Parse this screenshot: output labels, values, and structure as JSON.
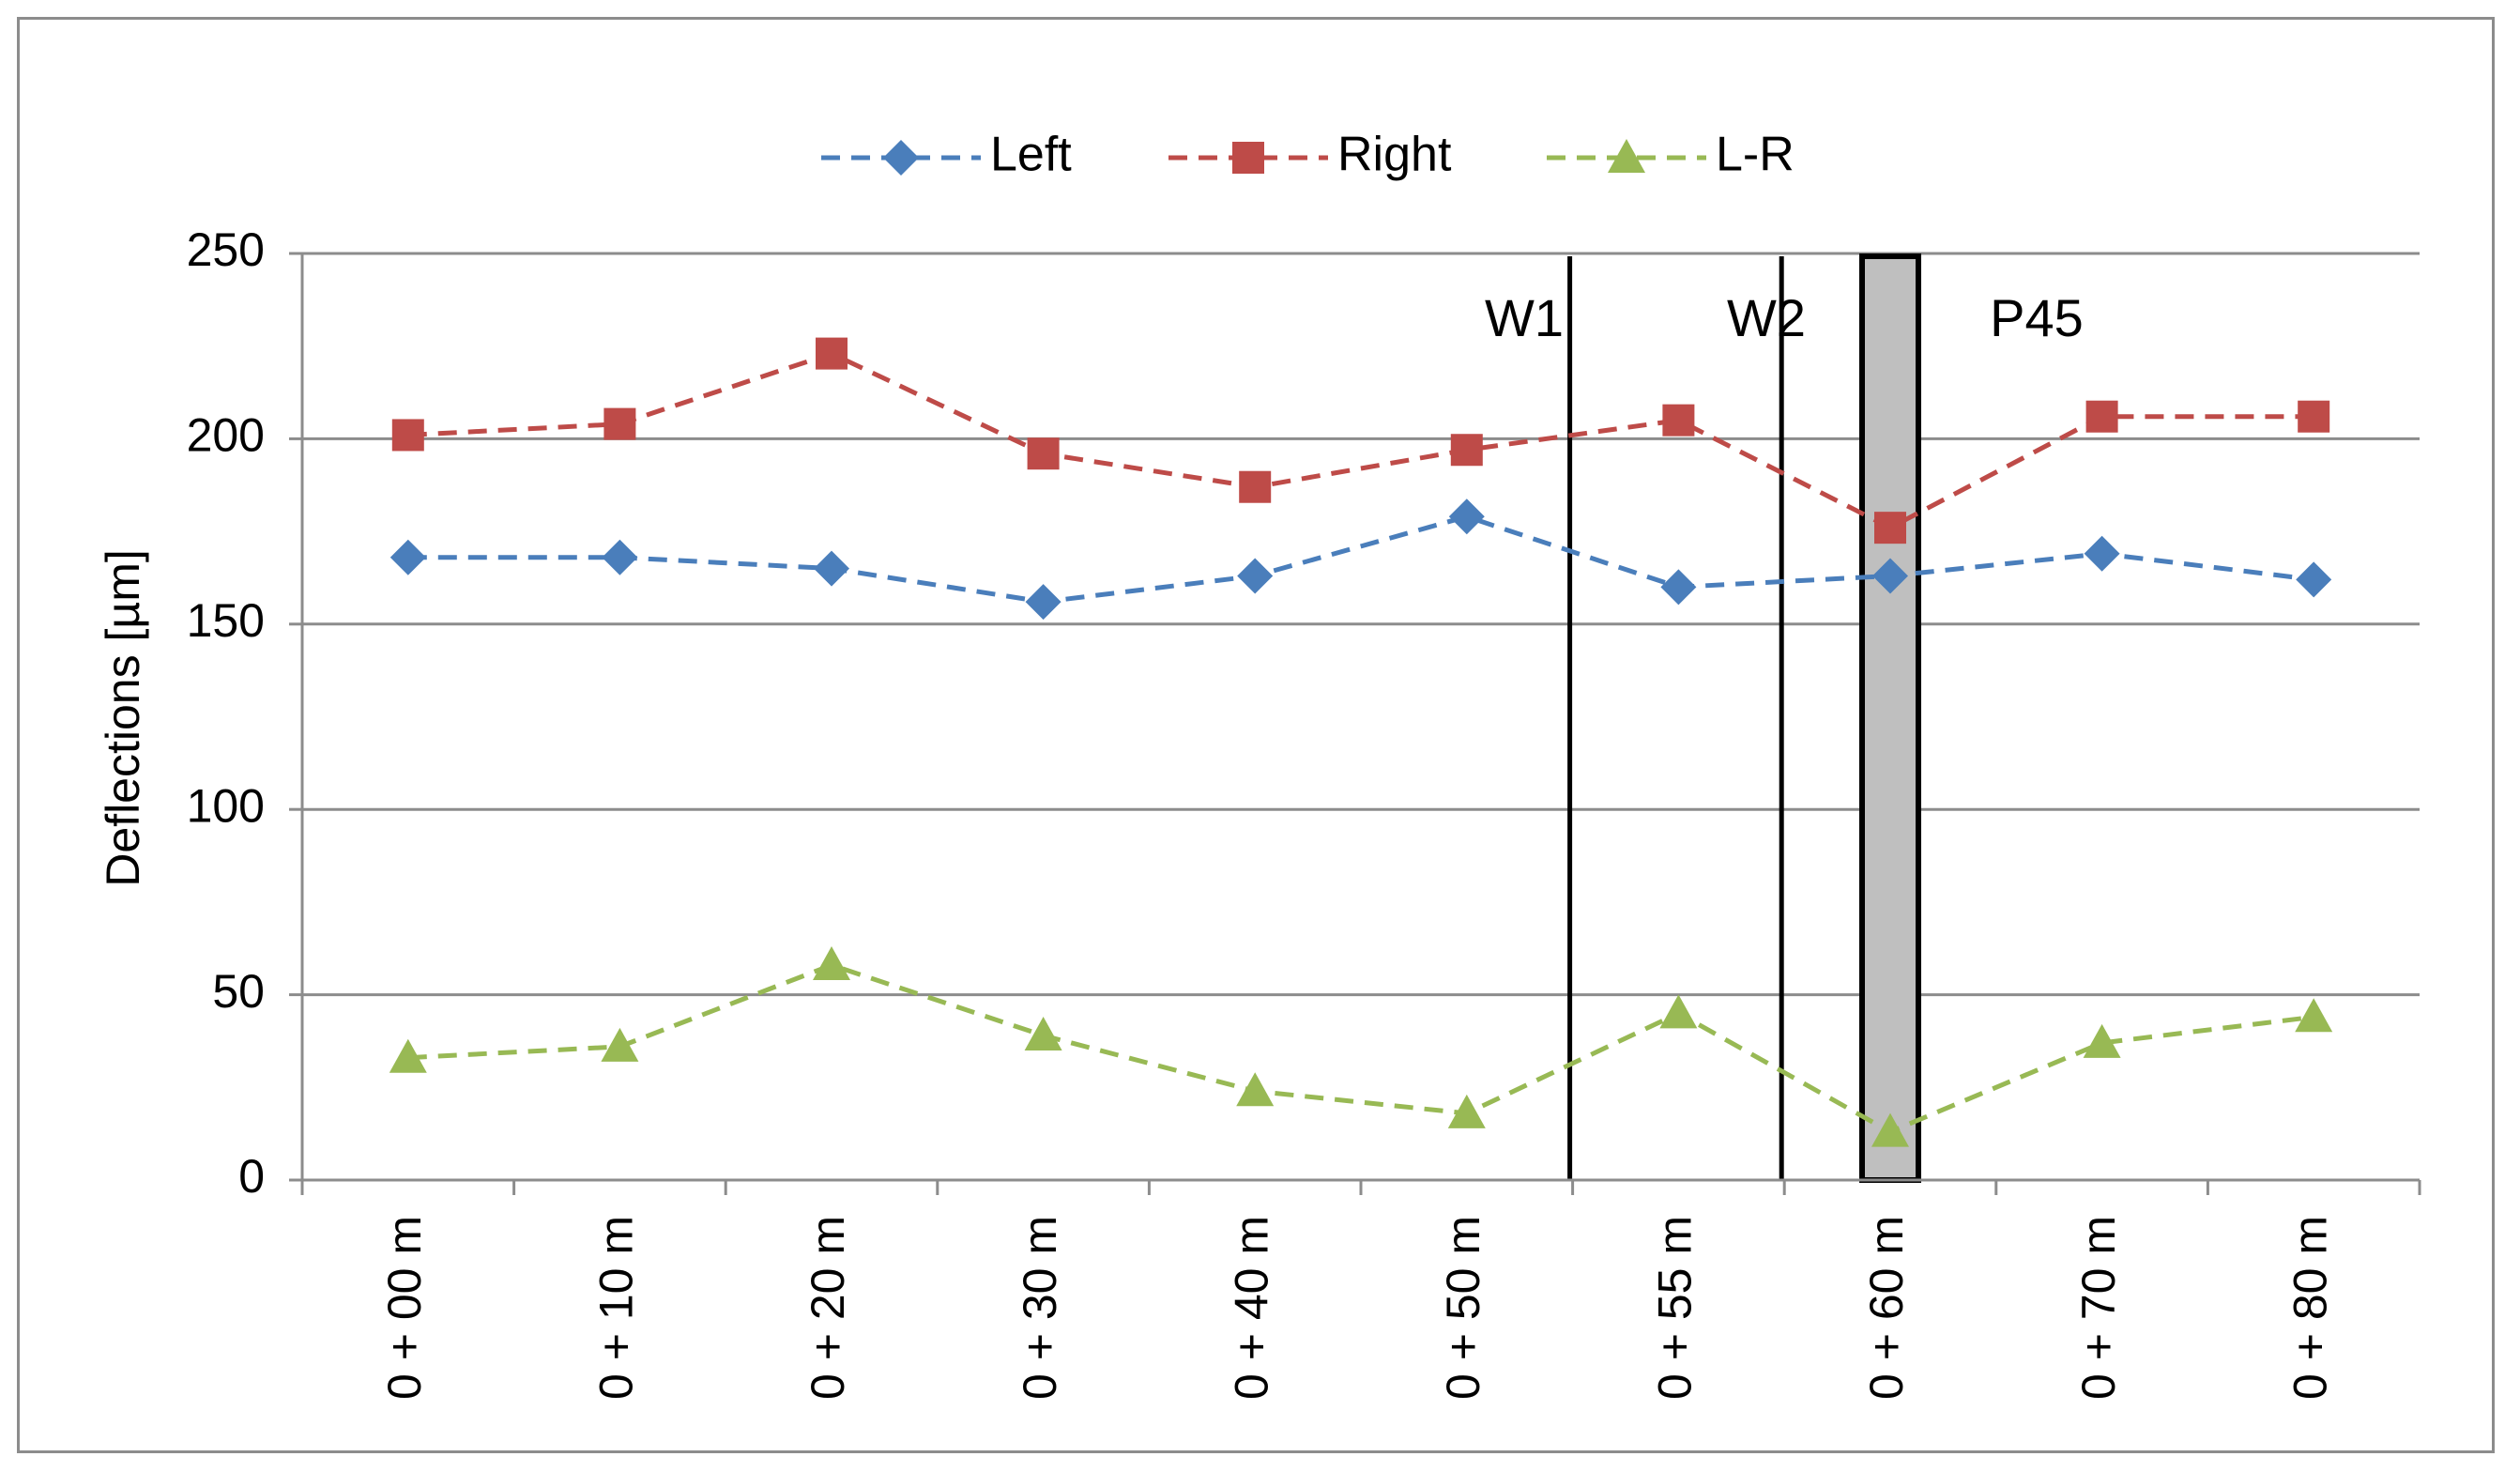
{
  "chart_data": {
    "type": "line",
    "title": "",
    "xlabel": "",
    "ylabel": "Deflections [µm]",
    "ylim": [
      0,
      250
    ],
    "yticks": [
      0,
      50,
      100,
      150,
      200,
      250
    ],
    "grid": true,
    "legend_position": "top",
    "categories": [
      "0 + 00 m",
      "0 + 10 m",
      "0 + 20 m",
      "0 + 30 m",
      "0 + 40 m",
      "0 + 50 m",
      "0 + 55 m",
      "0 + 60 m",
      "0 + 70 m",
      "0 + 80 m"
    ],
    "series": [
      {
        "name": "Left",
        "color": "#4a7ebb",
        "marker": "diamond",
        "values": [
          168,
          168,
          165,
          156,
          163,
          179,
          160,
          163,
          169,
          162
        ]
      },
      {
        "name": "Right",
        "color": "#be4b48",
        "marker": "square",
        "values": [
          201,
          204,
          223,
          196,
          187,
          197,
          205,
          176,
          206,
          206
        ]
      },
      {
        "name": "L-R",
        "color": "#98b954",
        "marker": "triangle",
        "values": [
          33,
          36,
          58,
          39,
          24,
          18,
          45,
          13,
          37,
          44
        ]
      }
    ],
    "annotations": [
      {
        "label": "W1",
        "type": "vertical-line",
        "position": "between 0 + 50 m and 0 + 55 m"
      },
      {
        "label": "W2",
        "type": "vertical-line",
        "position": "between 0 + 55 m and 0 + 60 m"
      },
      {
        "label": "P45",
        "type": "shaded-band",
        "position": "at 0 + 60 m",
        "color": "#bfbfbf"
      }
    ]
  }
}
